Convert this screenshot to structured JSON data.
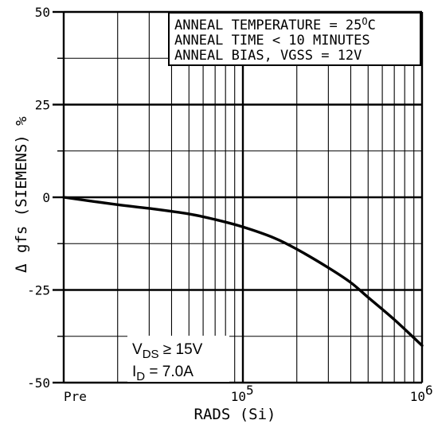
{
  "chart_data": {
    "type": "line",
    "x_scale": "log",
    "xlabel": "RADS (Si)",
    "ylabel_symbol": "Δ",
    "ylabel": "gfs (SIEMENS) %",
    "xlim": [
      10000,
      1000000
    ],
    "ylim": [
      -50,
      50
    ],
    "x_tick_labels": [
      {
        "x": 10000,
        "text": "Pre"
      },
      {
        "x": 100000,
        "base": "10",
        "exp": "5"
      },
      {
        "x": 1000000,
        "base": "10",
        "exp": "6"
      }
    ],
    "y_ticks": [
      50,
      25,
      0,
      -25,
      -50
    ],
    "grid": true,
    "legend_box": {
      "placement": "top-right",
      "lines": [
        {
          "text": "ANNEAL TEMPERATURE = 25",
          "sup": "O",
          "tail": "C"
        },
        {
          "text": "ANNEAL TIME < 10 MINUTES"
        },
        {
          "text": "ANNEAL BIAS, VGSS = 12V"
        }
      ]
    },
    "conditions": [
      {
        "main": "V",
        "sub": "DS",
        "rest": " ≥ 15V"
      },
      {
        "main": "I",
        "sub": "D",
        "rest": " = 7.0A"
      }
    ],
    "series": [
      {
        "x": [
          10000,
          20000,
          30000,
          50000,
          70000,
          100000,
          150000,
          200000,
          300000,
          400000,
          500000,
          700000,
          1000000
        ],
        "values": [
          0,
          -2,
          -3,
          -4.5,
          -6,
          -8,
          -11,
          -14,
          -19,
          -23,
          -27,
          -33,
          -40
        ]
      }
    ]
  }
}
